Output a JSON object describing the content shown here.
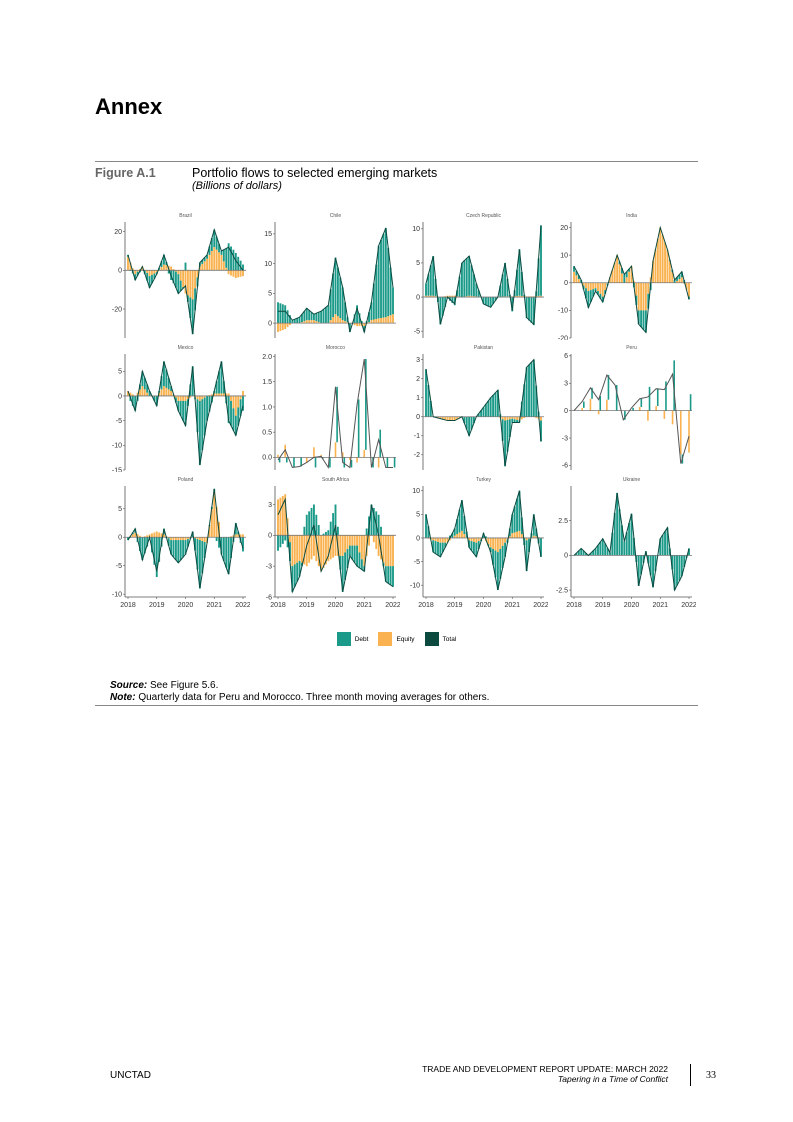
{
  "heading": "Annex",
  "figure": {
    "label": "Figure A.1",
    "title": "Portfolio flows to selected emerging markets",
    "subtitle": "(Billions of dollars)"
  },
  "source": {
    "label": "Source:",
    "text": " See Figure 5.6."
  },
  "note": {
    "label": "Note:",
    "text": " Quarterly data for Peru and Morocco. Three month moving averages for others."
  },
  "footer": {
    "left": "UNCTAD",
    "right_line1": "TRADE AND DEVELOPMENT REPORT UPDATE: MARCH 2022",
    "right_line2": "Tapering in a Time of Conflict",
    "page": "33"
  },
  "colors": {
    "debt": "#1b9a89",
    "equity": "#f9b24f",
    "total": "#0c4a40"
  },
  "chart_data": {
    "type": "bar",
    "title": "Portfolio flows to selected emerging markets",
    "ylabel": "Billions of dollars",
    "legend": {
      "placement": "bottom",
      "entries": [
        "Debt",
        "Equity",
        "Total"
      ]
    },
    "xticks": [
      "2018",
      "2019",
      "2020",
      "2021",
      "2022"
    ],
    "xrange": [
      2018,
      2022
    ],
    "panels": [
      {
        "name": "Brazil",
        "freq": "monthly",
        "ylim": [
          -35,
          25
        ],
        "yticks": [
          20,
          0,
          -20
        ],
        "total": [
          8,
          -5,
          2,
          -9,
          -2,
          8,
          -3,
          -12,
          -8,
          -33,
          4,
          8,
          21,
          10,
          12,
          5,
          0
        ],
        "equity": [
          7,
          -2,
          2,
          -3,
          -1,
          3,
          2,
          -2,
          -12,
          -15,
          2,
          6,
          12,
          8,
          -2,
          -4,
          -3
        ]
      },
      {
        "name": "Chile",
        "freq": "monthly",
        "ylim": [
          -2.5,
          17
        ],
        "yticks": [
          0,
          5,
          10,
          15
        ],
        "total": [
          2,
          2,
          0.5,
          1,
          2.5,
          1.5,
          2,
          3,
          11,
          6,
          -1.5,
          2.5,
          -1.5,
          3.5,
          13,
          16,
          6
        ],
        "equity": [
          -1.5,
          -1,
          0,
          0,
          0.5,
          0.5,
          0,
          0,
          1.5,
          0.5,
          0,
          -0.5,
          -0.5,
          0.5,
          0.8,
          1,
          1.5
        ]
      },
      {
        "name": "Czech Republic",
        "freq": "monthly",
        "ylim": [
          -6,
          11
        ],
        "yticks": [
          -5,
          0,
          5,
          10
        ],
        "total": [
          2,
          6,
          -4,
          0,
          -1,
          5,
          6,
          2,
          -1,
          -1.5,
          0,
          5,
          -2,
          7,
          -3,
          -4,
          10.5
        ],
        "equity": [
          0.2,
          0.2,
          0,
          0.2,
          0.2,
          0,
          0.2,
          0.1,
          0,
          0,
          0,
          0.1,
          0.1,
          0.2,
          0.1,
          0.1,
          0.2
        ]
      },
      {
        "name": "India",
        "freq": "monthly",
        "ylim": [
          -20,
          22
        ],
        "yticks": [
          20,
          10,
          0,
          -10,
          -20
        ],
        "total": [
          6,
          1,
          -9,
          -3,
          -7,
          2,
          10,
          3,
          6,
          -15,
          -18,
          8,
          20,
          12,
          1,
          4,
          -6
        ],
        "equity": [
          4,
          0,
          -3,
          -2,
          -5,
          2,
          10,
          0,
          6,
          -10,
          -10,
          8,
          20,
          12,
          0,
          2,
          -5
        ]
      },
      {
        "name": "Mexico",
        "freq": "monthly",
        "ylim": [
          -15,
          8.5
        ],
        "yticks": [
          5,
          0,
          -5,
          -10,
          -15
        ],
        "total": [
          1,
          -3,
          5,
          1,
          -2,
          7,
          2,
          -3,
          -6,
          6,
          -14,
          -5,
          1,
          7,
          -5,
          -8,
          -2
        ],
        "equity": [
          1,
          0,
          2,
          0,
          0,
          2,
          1,
          -1,
          -1,
          0,
          -1,
          0,
          0.5,
          0.5,
          0.5,
          -4,
          1
        ]
      },
      {
        "name": "Morocco",
        "freq": "quarterly",
        "ylim": [
          -0.25,
          2.05
        ],
        "yticks": [
          0,
          0.5,
          1,
          1.5,
          2
        ],
        "ytickLabels": [
          "0.0",
          "0.5",
          "1.0",
          "1.5",
          "2.0"
        ],
        "total": [
          -0.05,
          0.15,
          -0.2,
          -0.18,
          -0.1,
          0,
          0.02,
          -0.2,
          1.4,
          -0.1,
          -0.2,
          1.05,
          1.95,
          -0.2,
          0.35,
          -0.2,
          -0.2
        ],
        "equity": [
          0.05,
          0.25,
          0,
          0,
          -0.1,
          0.2,
          0.05,
          0,
          0.3,
          0.1,
          -0.05,
          -0.1,
          0.15,
          0,
          -0.2,
          0,
          0
        ]
      },
      {
        "name": "Pakistan",
        "freq": "monthly",
        "ylim": [
          -2.8,
          3.3
        ],
        "yticks": [
          3,
          2,
          1,
          0,
          -1,
          -2
        ],
        "total": [
          2.5,
          0,
          -0.1,
          -0.2,
          -0.2,
          0,
          -1,
          0,
          0.5,
          1,
          1.4,
          -2.6,
          -0.3,
          -0.3,
          2.6,
          3,
          -1.3
        ],
        "equity": [
          0,
          0,
          -0.1,
          -0.2,
          -0.2,
          0,
          0,
          0,
          0,
          0,
          0,
          -0.2,
          -0.1,
          -0.2,
          0,
          0,
          -0.2
        ]
      },
      {
        "name": "Peru",
        "freq": "quarterly",
        "ylim": [
          -6.5,
          6.2
        ],
        "yticks": [
          6,
          3,
          0,
          -3,
          -6
        ],
        "total": [
          0,
          1,
          2.5,
          1.2,
          3.9,
          2.8,
          -1,
          0.3,
          1.3,
          1.5,
          2.4,
          2.3,
          4,
          -5.8,
          -2.8
        ],
        "equity": [
          0,
          0.3,
          1.3,
          -0.4,
          1.2,
          0,
          0,
          0,
          0.4,
          -1.1,
          0.5,
          -0.9,
          -1.5,
          -4.8,
          -4.6
        ]
      },
      {
        "name": "Poland",
        "freq": "monthly",
        "ylim": [
          -10.5,
          9
        ],
        "yticks": [
          5,
          0,
          -5,
          -10
        ],
        "total": [
          -0.5,
          1.5,
          -4,
          0,
          -6,
          1.5,
          -3,
          -4.5,
          -3,
          1,
          -9,
          -1,
          8.5,
          -3,
          -6.5,
          2.5,
          -2
        ],
        "equity": [
          0,
          0.8,
          0,
          0.5,
          1,
          0.5,
          -0.5,
          -0.5,
          -0.5,
          0,
          -0.5,
          -1,
          8,
          0,
          0,
          0.5,
          0.5
        ]
      },
      {
        "name": "South Africa",
        "freq": "monthly",
        "ylim": [
          -6,
          4.8
        ],
        "yticks": [
          3,
          0,
          -3,
          -6
        ],
        "total": [
          2,
          3.5,
          -5.5,
          -4,
          -1,
          1,
          -3.5,
          -2,
          1,
          -5.5,
          -2,
          -3,
          -3.5,
          3,
          0,
          -4.5,
          -5
        ],
        "equity": [
          3.5,
          4,
          -3,
          -2.5,
          -3,
          -2,
          -3.5,
          -2.5,
          -2,
          -2,
          -1,
          -1,
          -3,
          0,
          -2,
          -3,
          -3
        ]
      },
      {
        "name": "Turkey",
        "freq": "monthly",
        "ylim": [
          -12.5,
          11
        ],
        "yticks": [
          10,
          5,
          0,
          -5,
          -10
        ],
        "total": [
          5,
          -3,
          -4,
          -1,
          2,
          8,
          -2,
          -4,
          1,
          -3,
          -11,
          -4,
          5,
          10,
          -7,
          5,
          -4
        ],
        "equity": [
          0,
          -0.5,
          -1,
          -1,
          0.5,
          1.5,
          -0.5,
          -1,
          0,
          -2,
          -3,
          -1,
          1,
          1.5,
          -0.5,
          0.5,
          0
        ]
      },
      {
        "name": "Ukraine",
        "freq": "monthly",
        "ylim": [
          -3,
          5
        ],
        "yticks": [
          2.5,
          0,
          -2.5
        ],
        "total": [
          0,
          0.5,
          0,
          0.5,
          1.2,
          0.2,
          4.5,
          1,
          3,
          -2.2,
          0.3,
          -2.3,
          1.2,
          2,
          -2.5,
          -1.5,
          0.5
        ],
        "equity": [
          0,
          0,
          0,
          0,
          0,
          0,
          0,
          0,
          0,
          0,
          0,
          0,
          0,
          0,
          0,
          0,
          0
        ]
      }
    ]
  }
}
